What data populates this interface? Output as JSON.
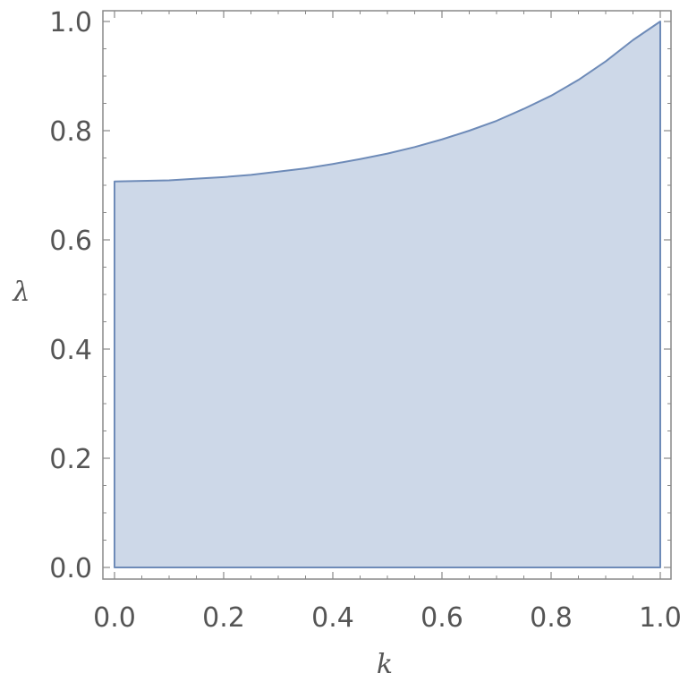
{
  "chart_data": {
    "type": "area",
    "title": "",
    "xlabel": "k",
    "ylabel": "λ",
    "xlim": [
      0,
      1
    ],
    "ylim": [
      0,
      1
    ],
    "grid": false,
    "x": [
      0.0,
      0.05,
      0.1,
      0.15,
      0.2,
      0.25,
      0.3,
      0.35,
      0.4,
      0.45,
      0.5,
      0.55,
      0.6,
      0.65,
      0.7,
      0.75,
      0.8,
      0.85,
      0.9,
      0.95,
      1.0
    ],
    "series": [
      {
        "values": [
          0.707,
          0.708,
          0.709,
          0.712,
          0.715,
          0.719,
          0.725,
          0.731,
          0.739,
          0.748,
          0.758,
          0.77,
          0.784,
          0.8,
          0.818,
          0.84,
          0.864,
          0.893,
          0.927,
          0.966,
          1.0
        ]
      }
    ],
    "fill_range": [
      0,
      1
    ],
    "xticks": [
      "0.0",
      "0.2",
      "0.4",
      "0.6",
      "0.8",
      "1.0"
    ],
    "yticks": [
      "0.0",
      "0.2",
      "0.4",
      "0.6",
      "0.8",
      "1.0"
    ],
    "colors": {
      "fill": "#cdd8e8",
      "stroke": "#6e8bb8",
      "frame": "#888888",
      "text": "#555555"
    }
  }
}
